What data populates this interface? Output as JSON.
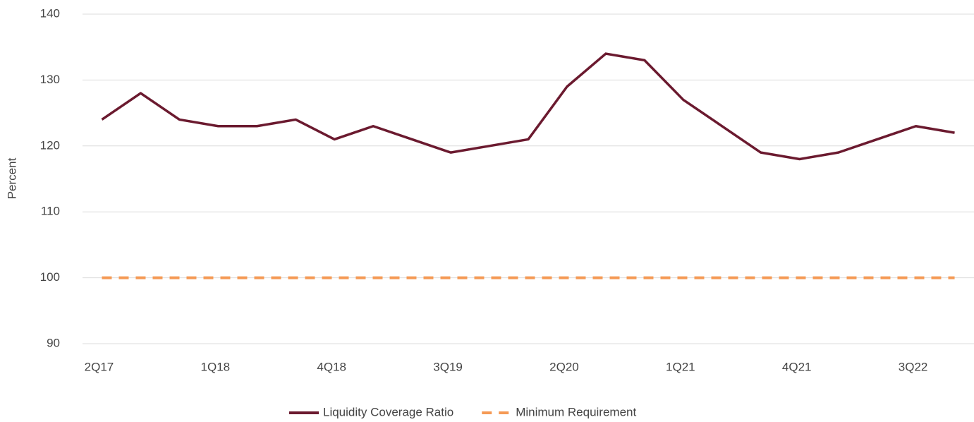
{
  "chart_data": {
    "type": "line",
    "y_label": "Percent",
    "categories": [
      "2Q17",
      null,
      null,
      "1Q18",
      null,
      null,
      "4Q18",
      null,
      null,
      "3Q19",
      null,
      null,
      "2Q20",
      null,
      null,
      "1Q21",
      null,
      null,
      "4Q21",
      null,
      null,
      "3Q22",
      null
    ],
    "series": [
      {
        "name": "Liquidity Coverage Ratio",
        "color": "#6b1a2f",
        "dashed": false,
        "values": [
          124,
          128,
          124,
          123,
          123,
          124,
          121,
          123,
          121,
          119,
          120,
          121,
          129,
          134,
          133,
          127,
          123,
          119,
          118,
          119,
          121,
          123,
          122
        ]
      },
      {
        "name": "Minimum Requirement",
        "color": "#f59a55",
        "dashed": true,
        "values": [
          100,
          100,
          100,
          100,
          100,
          100,
          100,
          100,
          100,
          100,
          100,
          100,
          100,
          100,
          100,
          100,
          100,
          100,
          100,
          100,
          100,
          100,
          100
        ]
      }
    ],
    "ylim": [
      90,
      140
    ],
    "yticks": [
      90,
      100,
      110,
      120,
      130,
      140
    ],
    "grid": true
  }
}
